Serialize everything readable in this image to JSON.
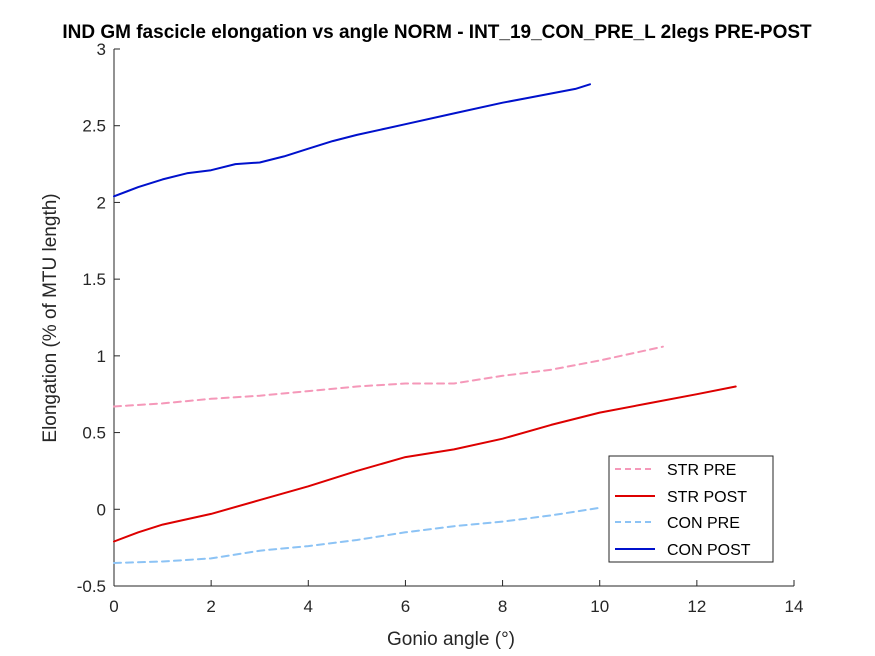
{
  "chart_data": {
    "type": "line",
    "title": "IND GM fascicle elongation vs angle NORM - INT_19_CON_PRE_L 2legs PRE-POST",
    "xlabel": "Gonio angle (°)",
    "ylabel": "Elongation (% of MTU length)",
    "xlim": [
      0,
      14
    ],
    "ylim": [
      -0.5,
      3
    ],
    "xticks": [
      0,
      2,
      4,
      6,
      8,
      10,
      12,
      14
    ],
    "yticks": [
      -0.5,
      0,
      0.5,
      1,
      1.5,
      2,
      2.5,
      3
    ],
    "xtick_labels": [
      "0",
      "2",
      "4",
      "6",
      "8",
      "10",
      "12",
      "14"
    ],
    "ytick_labels": [
      "-0.5",
      "0",
      "0.5",
      "1",
      "1.5",
      "2",
      "2.5",
      "3"
    ],
    "grid": false,
    "legend_position": "bottom-right",
    "series": [
      {
        "name": "STR PRE",
        "color": "#f598b9",
        "dash": true,
        "x": [
          0,
          1,
          2,
          3,
          4,
          5,
          6,
          7,
          8,
          9,
          10,
          11.3
        ],
        "y": [
          0.67,
          0.69,
          0.72,
          0.74,
          0.77,
          0.8,
          0.82,
          0.82,
          0.87,
          0.91,
          0.97,
          1.06
        ]
      },
      {
        "name": "STR POST",
        "color": "#dd0000",
        "dash": false,
        "x": [
          0,
          0.5,
          1,
          2,
          3,
          4,
          5,
          6,
          7,
          8,
          9,
          10,
          11,
          12,
          12.8
        ],
        "y": [
          -0.21,
          -0.15,
          -0.1,
          -0.03,
          0.06,
          0.15,
          0.25,
          0.34,
          0.39,
          0.46,
          0.55,
          0.63,
          0.69,
          0.75,
          0.8
        ]
      },
      {
        "name": "CON PRE",
        "color": "#8cc3f5",
        "dash": true,
        "x": [
          0,
          1,
          2,
          3,
          4,
          5,
          6,
          7,
          8,
          9,
          10
        ],
        "y": [
          -0.35,
          -0.34,
          -0.32,
          -0.27,
          -0.24,
          -0.2,
          -0.15,
          -0.11,
          -0.08,
          -0.04,
          0.01
        ]
      },
      {
        "name": "CON POST",
        "color": "#0011cc",
        "dash": false,
        "x": [
          0,
          0.5,
          1,
          1.5,
          2,
          2.5,
          3,
          3.5,
          4,
          4.5,
          5,
          6,
          7,
          8,
          8.5,
          9,
          9.5,
          9.8
        ],
        "y": [
          2.04,
          2.1,
          2.15,
          2.19,
          2.21,
          2.25,
          2.26,
          2.3,
          2.35,
          2.4,
          2.44,
          2.51,
          2.58,
          2.65,
          2.68,
          2.71,
          2.74,
          2.77
        ]
      }
    ]
  }
}
